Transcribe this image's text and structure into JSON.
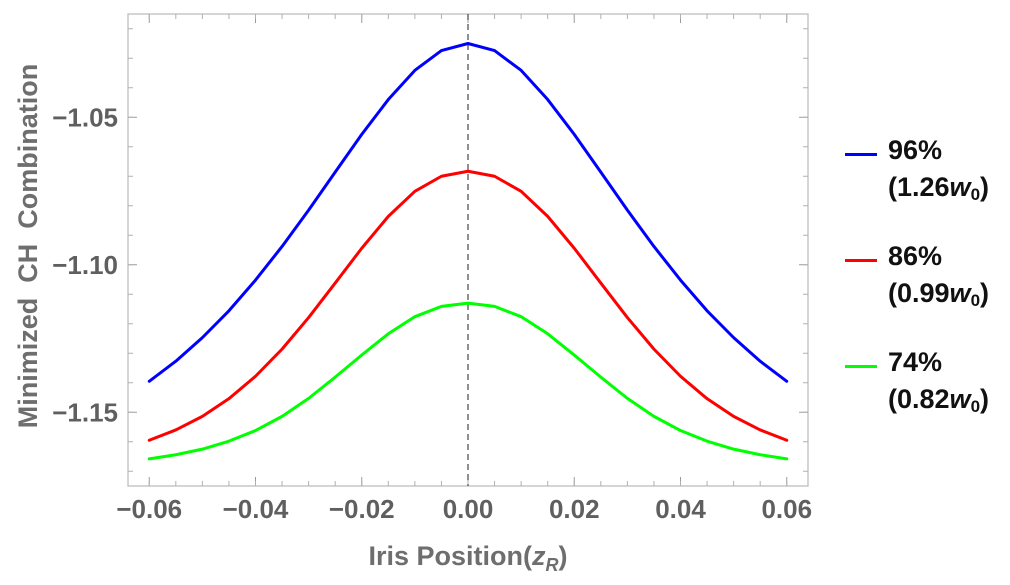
{
  "chart_data": {
    "type": "line",
    "xlabel_prefix": "Iris Position(",
    "xlabel_var": "z",
    "xlabel_sub": "R",
    "xlabel_suffix": ")",
    "ylabel": "Minimized  CH  Combination",
    "xlim": [
      -0.064,
      0.064
    ],
    "ylim": [
      -1.175,
      -1.015
    ],
    "x_ticks": [
      -0.06,
      -0.04,
      -0.02,
      0.0,
      0.02,
      0.04,
      0.06
    ],
    "x_tick_labels": [
      "−0.06",
      "−0.04",
      "−0.02",
      "0.00",
      "0.02",
      "0.04",
      "0.06"
    ],
    "y_ticks": [
      -1.05,
      -1.1,
      -1.15
    ],
    "y_tick_labels": [
      "−1.05",
      "−1.10",
      "−1.15"
    ],
    "reference_line_x": 0.0,
    "x": [
      -0.06,
      -0.055,
      -0.05,
      -0.045,
      -0.04,
      -0.035,
      -0.03,
      -0.025,
      -0.02,
      -0.015,
      -0.01,
      -0.005,
      0.0,
      0.005,
      0.01,
      0.015,
      0.02,
      0.025,
      0.03,
      0.035,
      0.04,
      0.045,
      0.05,
      0.055,
      0.06
    ],
    "series": [
      {
        "name": "96% (1.26w0)",
        "percent": "96%",
        "width_prefix": "(1.26",
        "width_var": "w",
        "width_sub": "0",
        "width_suffix": ")",
        "color": "#0000ff",
        "values": [
          -1.1395,
          -1.1327,
          -1.1247,
          -1.1156,
          -1.1052,
          -1.0938,
          -1.0815,
          -1.0686,
          -1.0558,
          -1.044,
          -1.0341,
          -1.0274,
          -1.025,
          -1.0274,
          -1.0341,
          -1.044,
          -1.0558,
          -1.0686,
          -1.0815,
          -1.0938,
          -1.1052,
          -1.1156,
          -1.1247,
          -1.1327,
          -1.1395
        ]
      },
      {
        "name": "86% (0.99w0)",
        "percent": "86%",
        "width_prefix": "(0.99",
        "width_var": "w",
        "width_sub": "0",
        "width_suffix": ")",
        "color": "#ff0000",
        "values": [
          -1.1595,
          -1.156,
          -1.1514,
          -1.1454,
          -1.1378,
          -1.1286,
          -1.1179,
          -1.1062,
          -1.0944,
          -1.0836,
          -1.0751,
          -1.07,
          -1.0683,
          -1.07,
          -1.0751,
          -1.0836,
          -1.0944,
          -1.1062,
          -1.1179,
          -1.1286,
          -1.1378,
          -1.1454,
          -1.1514,
          -1.156,
          -1.1595
        ]
      },
      {
        "name": "74% (0.82w0)",
        "percent": "74%",
        "width_prefix": "(0.82",
        "width_var": "w",
        "width_sub": "0",
        "width_suffix": ")",
        "color": "#00ff00",
        "values": [
          -1.1658,
          -1.1644,
          -1.1625,
          -1.1598,
          -1.1562,
          -1.1514,
          -1.1453,
          -1.1381,
          -1.1306,
          -1.1234,
          -1.1176,
          -1.1141,
          -1.113,
          -1.1141,
          -1.1176,
          -1.1234,
          -1.1306,
          -1.1381,
          -1.1453,
          -1.1514,
          -1.1562,
          -1.1598,
          -1.1625,
          -1.1644,
          -1.1658
        ]
      }
    ]
  }
}
